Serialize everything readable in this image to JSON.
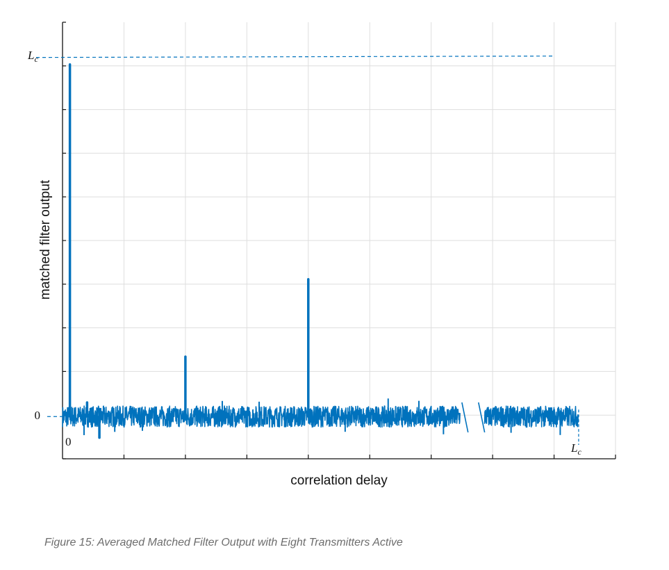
{
  "chart_data": {
    "type": "line",
    "xlabel": "correlation delay",
    "ylabel": "matched filter output",
    "y_tick_labels": [
      {
        "text": "0",
        "value": 0
      }
    ],
    "x_tick_labels": [
      {
        "text": "0",
        "value": 0
      }
    ],
    "reference_label": {
      "base": "L",
      "sub": "c"
    },
    "grid": true,
    "x_break": true,
    "annotations": [
      "dashed horizontal reference line at y = Lc",
      "dashed horizontal reference line at y = 0",
      "dashed vertical marker at x = Lc"
    ],
    "peaks": [
      {
        "x": 0.12,
        "value": 1.0
      },
      {
        "x": 2.0,
        "value": 0.17
      },
      {
        "x": 4.0,
        "value": 0.39
      },
      {
        "x": 0.4,
        "value": 0.04
      },
      {
        "x": 0.6,
        "value": -0.06
      }
    ],
    "noise_band": {
      "amplitude": 0.03,
      "x_range": [
        0,
        8.4
      ]
    },
    "break_x": [
      6.55,
      6.75
    ],
    "ylim": [
      -0.12,
      1.12
    ],
    "xlim": [
      0,
      9
    ]
  },
  "caption": "Figure 15: Averaged Matched Filter Output with Eight Transmitters Active",
  "colors": {
    "series": "#0072BD",
    "grid": "#dedede",
    "axis": "#111111",
    "caption": "#6d6d6d"
  }
}
